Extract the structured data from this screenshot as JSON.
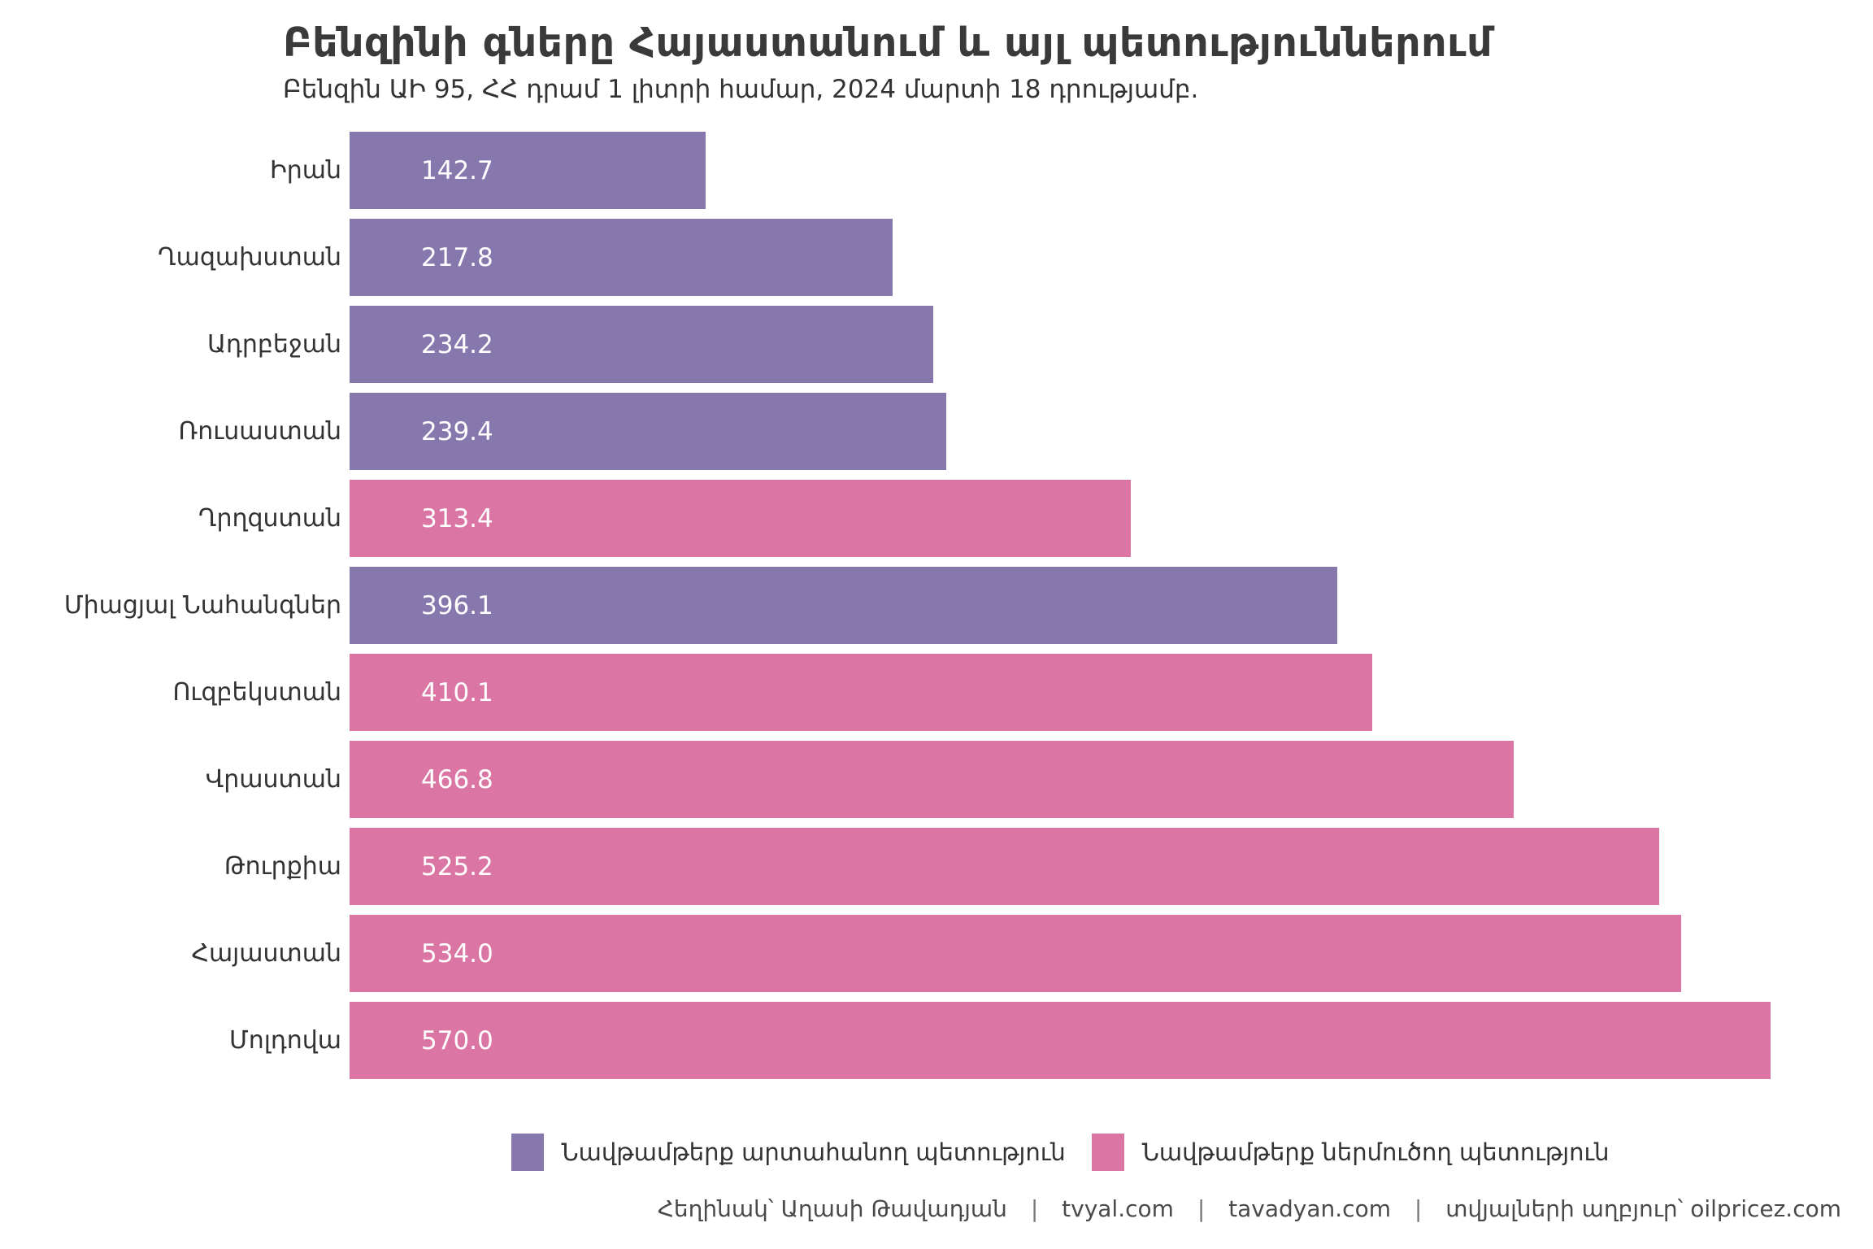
{
  "chart_data": {
    "type": "bar",
    "orientation": "horizontal",
    "title": "Բենզինի գները Հայաստանում և այլ պետություններում",
    "subtitle": "Բենզին ԱԻ 95, ՀՀ դրամ 1 լիտրի համար, 2024 մարտի 18 դրությամբ.",
    "categories": [
      "Իրան",
      "Ղազախստան",
      "Ադրբեջան",
      "Ռուսաստան",
      "Ղրղզստան",
      "Միացյալ Նահանգներ",
      "Ուզբեկստան",
      "Վրաստան",
      "Թուրքիա",
      "Հայաստան",
      "Մոլդովա"
    ],
    "values": [
      142.7,
      217.8,
      234.2,
      239.4,
      313.4,
      396.1,
      410.1,
      466.8,
      525.2,
      534.0,
      570.0
    ],
    "groups": [
      "exporter",
      "exporter",
      "exporter",
      "exporter",
      "importer",
      "exporter",
      "importer",
      "importer",
      "importer",
      "importer",
      "importer"
    ],
    "value_label_decimals": 1,
    "xlim": [
      0,
      570
    ],
    "grid": false,
    "bar_label_position": "inside-left",
    "colors": {
      "exporter": "#8677AD",
      "importer": "#DB75A3"
    },
    "legend_position": "bottom-center",
    "legend": [
      {
        "key": "exporter",
        "label": "Նավթամթերք արտահանող պետություն",
        "color": "#8677AD"
      },
      {
        "key": "importer",
        "label": "Նավթամթերք ներմուծող պետություն",
        "color": "#DB75A3"
      }
    ]
  },
  "footer": {
    "separator": "|",
    "items": [
      "Հեղինակ՝ Աղասի Թավադյան",
      "tvyal.com",
      "tavadyan.com",
      "տվյալների աղբյուր՝ oilpricez.com"
    ]
  }
}
